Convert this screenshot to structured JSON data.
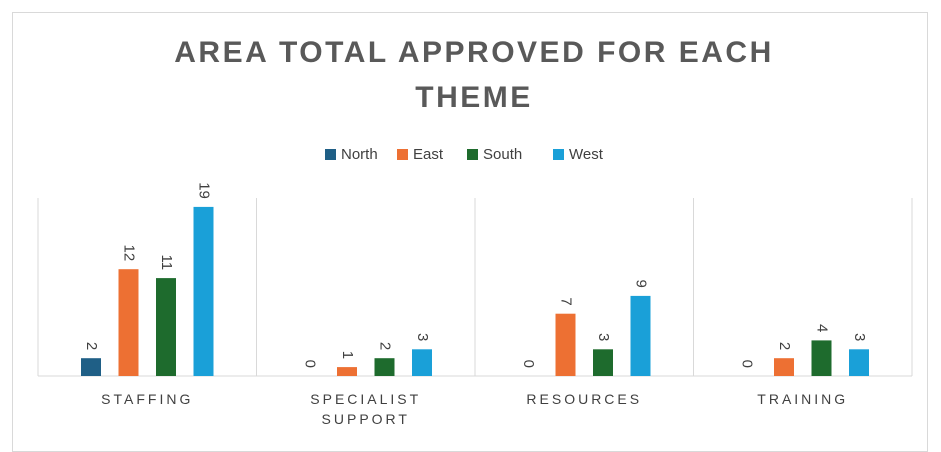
{
  "chart_data": {
    "type": "bar",
    "title": "AREA TOTAL APPROVED FOR EACH THEME",
    "categories": [
      "STAFFING",
      "SPECIALIST SUPPORT",
      "RESOURCES",
      "TRAINING"
    ],
    "series": [
      {
        "name": "North",
        "color": "#1f5f86",
        "values": [
          2,
          0,
          0,
          0
        ]
      },
      {
        "name": "East",
        "color": "#ed7033",
        "values": [
          12,
          1,
          7,
          2
        ]
      },
      {
        "name": "South",
        "color": "#1e6b2d",
        "values": [
          11,
          2,
          3,
          4
        ]
      },
      {
        "name": "West",
        "color": "#1aa0d8",
        "values": [
          19,
          3,
          9,
          3
        ]
      }
    ],
    "ylim": [
      0,
      20
    ],
    "legend": "top"
  }
}
